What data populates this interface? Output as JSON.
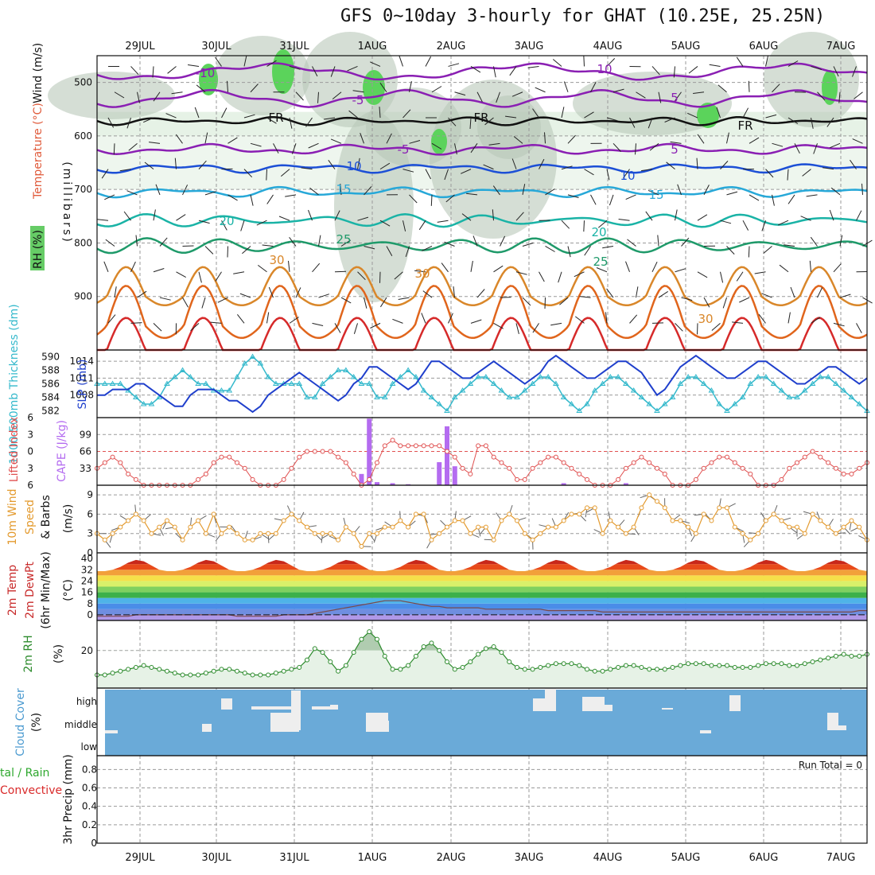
{
  "title": "GFS 0~10day 3-hourly for GHAT (10.25E, 25.25N)",
  "dates": [
    "29JUL",
    "30JUL",
    "31JUL",
    "1AUG",
    "2AUG",
    "3AUG",
    "4AUG",
    "5AUG",
    "6AUG",
    "7AUG"
  ],
  "run_total": "Run Total = 0",
  "colors": {
    "purple": "#8a1fb3",
    "blue": "#1c4fd6",
    "lightblue": "#27a8d8",
    "teal": "#1ab3a6",
    "green": "#1f9a6a",
    "orange": "#d9872a",
    "darkorange": "#e0651c",
    "red": "#d62a2a",
    "rh_green": "#5bd35b",
    "rh_gray": "#b9c8b9",
    "rh_light": "#e6f2e6",
    "slp": "#1f3fcc",
    "thick": "#35b9cc",
    "lifted": "#e05050",
    "cape": "#b46cf0",
    "wind": "#e39a2e",
    "rh2m": "#2b8a2b",
    "cloud_bg": "#6aaad8"
  },
  "chart_data": [
    {
      "type": "contour",
      "panel": "upper-air",
      "ylabel": "(millibars)",
      "legend_labels": [
        "Wind (m/s)",
        "Temperature (°C)",
        "RH (%)"
      ],
      "yticks": [
        500,
        600,
        700,
        800,
        900
      ],
      "ylim": [
        1000,
        450
      ],
      "freezing_label": "FR",
      "contour_labels": [
        {
          "text": "-10",
          "color": "purple"
        },
        {
          "text": "10",
          "color": "purple"
        },
        {
          "text": "-5",
          "color": "purple"
        },
        {
          "text": "5",
          "color": "purple"
        },
        {
          "text": "FR",
          "color": "black"
        },
        {
          "text": "FR",
          "color": "black"
        },
        {
          "text": "FR",
          "color": "black"
        },
        {
          "text": "-5",
          "color": "purple"
        },
        {
          "text": "5",
          "color": "purple"
        },
        {
          "text": "10",
          "color": "blue"
        },
        {
          "text": "10",
          "color": "blue"
        },
        {
          "text": "15",
          "color": "lightblue"
        },
        {
          "text": "15",
          "color": "lightblue"
        },
        {
          "text": "20",
          "color": "teal"
        },
        {
          "text": "20",
          "color": "teal"
        },
        {
          "text": "25",
          "color": "green"
        },
        {
          "text": "25",
          "color": "green"
        },
        {
          "text": "30",
          "color": "orange"
        },
        {
          "text": "30",
          "color": "orange"
        },
        {
          "text": "30",
          "color": "orange"
        }
      ]
    },
    {
      "type": "line",
      "panel": "slp-thickness",
      "ylabel_left": "1000-500mb Thickness (dm)",
      "ylabel_right": "SLP (mb)",
      "left_ticks": [
        582,
        584,
        586,
        588,
        590
      ],
      "right_ticks": [
        1008,
        1011,
        1014
      ],
      "series": [
        {
          "name": "Thickness",
          "values": [
            586,
            586,
            586,
            586,
            585,
            584,
            583,
            583,
            584,
            586,
            587,
            588,
            587,
            586,
            586,
            585,
            585,
            585,
            587,
            589,
            590,
            589,
            587,
            586,
            586,
            586,
            586,
            584,
            584,
            586,
            587,
            588,
            588,
            587,
            586,
            586,
            584,
            584,
            586,
            587,
            588,
            587,
            585,
            584,
            583,
            582,
            584,
            585,
            586,
            587,
            587,
            586,
            585,
            584,
            584,
            585,
            586,
            587,
            587,
            586,
            584,
            583,
            582,
            583,
            585,
            586,
            587,
            587,
            586,
            585,
            584,
            583,
            582,
            583,
            584,
            586,
            587,
            587,
            586,
            585,
            583,
            582,
            583,
            584,
            586,
            587,
            587,
            586,
            585,
            584,
            584,
            585,
            586,
            587,
            587,
            586,
            585,
            584,
            583,
            582
          ]
        },
        {
          "name": "SLP",
          "values": [
            1008,
            1008,
            1009,
            1009,
            1009,
            1010,
            1010,
            1009,
            1008,
            1007,
            1006,
            1006,
            1008,
            1009,
            1009,
            1009,
            1008,
            1007,
            1007,
            1006,
            1005,
            1006,
            1008,
            1009,
            1010,
            1011,
            1012,
            1011,
            1010,
            1009,
            1008,
            1007,
            1008,
            1010,
            1011,
            1013,
            1013,
            1012,
            1011,
            1010,
            1009,
            1010,
            1012,
            1014,
            1014,
            1013,
            1012,
            1011,
            1011,
            1012,
            1013,
            1014,
            1013,
            1012,
            1011,
            1010,
            1011,
            1012,
            1014,
            1015,
            1014,
            1013,
            1012,
            1011,
            1011,
            1012,
            1013,
            1014,
            1014,
            1013,
            1012,
            1010,
            1008,
            1009,
            1011,
            1013,
            1014,
            1015,
            1014,
            1013,
            1012,
            1011,
            1011,
            1012,
            1013,
            1014,
            1014,
            1013,
            1012,
            1011,
            1010,
            1010,
            1011,
            1012,
            1013,
            1013,
            1012,
            1011,
            1010,
            1011
          ]
        }
      ]
    },
    {
      "type": "line+bar",
      "panel": "lifted-cape",
      "ylabel_left": "Lifted Index",
      "ylabel_right": "CAPE (J/kg)",
      "left_ticks": [
        -6,
        -3,
        0,
        3,
        6
      ],
      "right_ticks": [
        33,
        66,
        99
      ],
      "series": [
        {
          "name": "Lifted Index",
          "values": [
            3,
            2,
            1,
            2,
            4,
            5,
            6,
            6,
            6,
            6,
            6,
            6,
            6,
            5,
            4,
            2,
            1,
            1,
            2,
            3,
            5,
            6,
            6,
            6,
            5,
            3,
            1,
            0,
            0,
            0,
            0,
            1,
            2,
            4,
            6,
            5,
            2,
            -1,
            -2,
            -1,
            -1,
            -1,
            -1,
            -1,
            -1,
            0,
            1,
            3,
            4,
            -1,
            -1,
            1,
            2,
            3,
            5,
            5,
            3,
            2,
            1,
            1,
            2,
            3,
            4,
            5,
            6,
            6,
            6,
            5,
            3,
            2,
            1,
            2,
            3,
            4,
            6,
            6,
            6,
            5,
            3,
            2,
            1,
            1,
            2,
            3,
            4,
            6,
            6,
            6,
            5,
            3,
            2,
            1,
            0,
            1,
            2,
            3,
            4,
            4,
            3,
            2
          ]
        },
        {
          "name": "CAPE",
          "values": [
            0,
            0,
            0,
            0,
            0,
            0,
            0,
            0,
            0,
            0,
            0,
            0,
            0,
            0,
            0,
            0,
            0,
            0,
            0,
            0,
            0,
            0,
            0,
            0,
            0,
            0,
            0,
            0,
            0,
            0,
            0,
            0,
            0,
            0,
            22,
            130,
            6,
            0,
            4,
            0,
            2,
            0,
            0,
            0,
            45,
            115,
            37,
            0,
            0,
            0,
            0,
            0,
            0,
            0,
            0,
            0,
            0,
            0,
            0,
            0,
            4,
            0,
            0,
            0,
            0,
            0,
            0,
            0,
            4,
            0,
            0,
            0,
            0,
            0,
            0,
            0,
            0,
            0,
            0,
            0,
            0,
            0,
            0,
            0,
            0,
            0,
            0,
            4,
            0,
            0,
            0,
            0,
            0,
            0,
            0,
            0,
            0,
            0,
            0,
            0
          ]
        }
      ]
    },
    {
      "type": "line",
      "panel": "wind10m",
      "ylabel": [
        "10m Wind",
        "Speed",
        "& Barbs"
      ],
      "yunit": "(m/s)",
      "yticks": [
        0,
        3,
        6,
        9
      ],
      "series": [
        {
          "name": "Speed",
          "values": [
            3,
            2,
            3,
            4,
            5,
            6,
            5,
            3,
            4,
            5,
            4,
            2,
            4,
            5,
            3,
            6,
            3,
            4,
            3,
            2,
            2,
            3,
            3,
            3,
            5,
            6,
            5,
            4,
            3,
            3,
            3,
            2,
            4,
            3,
            1,
            3,
            3,
            4,
            4,
            5,
            4,
            6,
            6,
            2,
            3,
            4,
            5,
            5,
            3,
            4,
            4,
            2,
            5,
            6,
            5,
            3,
            2,
            3,
            4,
            4,
            5,
            6,
            6,
            7,
            7,
            3,
            5,
            4,
            3,
            4,
            7,
            9,
            8,
            7,
            5,
            5,
            4,
            3,
            6,
            5,
            7,
            7,
            4,
            3,
            2,
            3,
            5,
            6,
            5,
            4,
            4,
            3,
            6,
            5,
            4,
            3,
            4,
            5,
            4,
            2
          ]
        }
      ]
    },
    {
      "type": "area",
      "panel": "temp2m",
      "ylabel": [
        "2m Temp",
        "2m DewPt",
        "(6hr Min/Max)"
      ],
      "yunit": "(°C)",
      "yticks": [
        0,
        8,
        16,
        24,
        32,
        40
      ],
      "series": [
        {
          "name": "2m Temp",
          "values": [
            31,
            31,
            32,
            34,
            37,
            39,
            38,
            35,
            32,
            31,
            31,
            32,
            34,
            37,
            39,
            38,
            35,
            32,
            31,
            31,
            32,
            34,
            37,
            39,
            38,
            35,
            32,
            31,
            31,
            32,
            34,
            37,
            39,
            38,
            35,
            32,
            31,
            31,
            32,
            34,
            37,
            39,
            38,
            35,
            32,
            31,
            31,
            32,
            34,
            37,
            39,
            38,
            35,
            32,
            31,
            31,
            32,
            34,
            37,
            39,
            38,
            35,
            32,
            31,
            31,
            32,
            34,
            37,
            39,
            38,
            35,
            32,
            31,
            31,
            32,
            34,
            37,
            39,
            38,
            35,
            32,
            31,
            31,
            32,
            34,
            37,
            39,
            38,
            35,
            32,
            31,
            31,
            32,
            34,
            37,
            39,
            38,
            35,
            32,
            31
          ]
        },
        {
          "name": "2m DewPt",
          "values": [
            -1,
            -1,
            -1,
            -1,
            -1,
            0,
            0,
            0,
            0,
            0,
            0,
            0,
            0,
            0,
            0,
            0,
            0,
            0,
            -1,
            -1,
            -1,
            -1,
            -1,
            -1,
            0,
            0,
            0,
            0,
            1,
            2,
            3,
            4,
            5,
            6,
            7,
            8,
            9,
            10,
            10,
            10,
            9,
            8,
            7,
            6,
            6,
            5,
            5,
            5,
            5,
            5,
            4,
            4,
            4,
            4,
            4,
            4,
            4,
            4,
            3,
            3,
            3,
            3,
            3,
            3,
            3,
            2,
            2,
            2,
            2,
            2,
            2,
            2,
            2,
            2,
            2,
            2,
            2,
            2,
            2,
            2,
            2,
            2,
            2,
            2,
            2,
            2,
            2,
            2,
            2,
            2,
            2,
            2,
            2,
            2,
            2,
            2,
            2,
            2,
            3,
            3
          ]
        }
      ]
    },
    {
      "type": "line",
      "panel": "rh2m",
      "ylabel": "2m RH",
      "yunit": "(%)",
      "yticks": [
        20
      ],
      "series": [
        {
          "name": "2m RH",
          "values": [
            7,
            7,
            8,
            9,
            10,
            11,
            12,
            11,
            10,
            9,
            8,
            7,
            7,
            7,
            8,
            9,
            10,
            10,
            9,
            8,
            7,
            7,
            7,
            8,
            9,
            10,
            11,
            15,
            21,
            19,
            14,
            9,
            12,
            19,
            26,
            30,
            26,
            17,
            10,
            10,
            12,
            17,
            22,
            24,
            20,
            14,
            10,
            11,
            14,
            18,
            21,
            22,
            19,
            14,
            11,
            10,
            10,
            11,
            12,
            13,
            13,
            13,
            12,
            10,
            9,
            9,
            10,
            11,
            12,
            12,
            11,
            10,
            10,
            10,
            11,
            12,
            13,
            13,
            13,
            12,
            12,
            12,
            11,
            11,
            11,
            12,
            13,
            13,
            13,
            12,
            12,
            13,
            14,
            15,
            16,
            17,
            18,
            17,
            17,
            18
          ]
        }
      ]
    },
    {
      "type": "bar",
      "panel": "cloud",
      "ylabel": "Cloud Cover",
      "yunit": "(%)",
      "levels": [
        "high",
        "middle",
        "low"
      ]
    },
    {
      "type": "bar",
      "panel": "precip",
      "ylabel_left": [
        "tal / Rain",
        "Convective"
      ],
      "ylabel_right": "3hr Precip (mm)",
      "yticks": [
        "0",
        "0.2",
        "0.4",
        "0.6",
        "0.8"
      ],
      "values": []
    }
  ]
}
